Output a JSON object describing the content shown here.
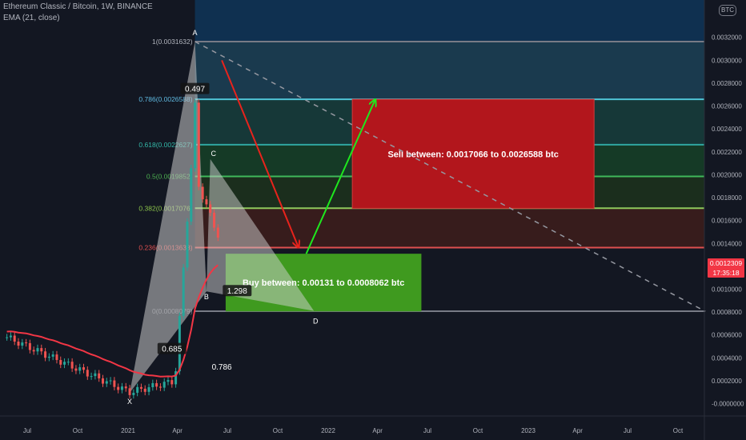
{
  "header": {
    "symbol_line": "Ethereum Classic / Bitcoin, 1W, BINANCE",
    "indicator_line": "EMA (21, close)",
    "currency_badge": "BTC"
  },
  "colors": {
    "background": "#131722",
    "ema": "#f23645",
    "candle_up": "#26a69a",
    "candle_down": "#ef5350",
    "sell_box": "#b2161c",
    "buy_box": "#3f9a1f",
    "arrow_down": "#e8231c",
    "arrow_up": "#1ee81e"
  },
  "price_tag": {
    "price": "0.0012309",
    "countdown": "17:35:18"
  },
  "chart_data": {
    "type": "candlestick",
    "title": "Ethereum Classic / Bitcoin, 1W, BINANCE",
    "y_axis": {
      "range": [
        -0.0002,
        0.0035
      ],
      "ticks": [
        0.0032,
        0.003,
        0.0028,
        0.0026,
        0.0024,
        0.0022,
        0.002,
        0.0018,
        0.0016,
        0.0014,
        0.0012,
        0.001,
        0.0008,
        0.0006,
        0.0004,
        0.0002,
        0.0
      ],
      "tick_labels": [
        "0.0032000",
        "0.0030000",
        "0.0028000",
        "0.0026000",
        "0.0024000",
        "0.0022000",
        "0.0020000",
        "0.0018000",
        "0.0016000",
        "0.0014000",
        "0.0012000",
        "0.0010000",
        "0.0008000",
        "0.0006000",
        "0.0004000",
        "0.0002000",
        "-0.0000000"
      ]
    },
    "x_axis": {
      "range": [
        "2020-05-25",
        "2023-11-20"
      ],
      "ticks": [
        {
          "label": "Jul",
          "date": "2020-07-01"
        },
        {
          "label": "Oct",
          "date": "2020-10-01"
        },
        {
          "label": "2021",
          "date": "2021-01-01"
        },
        {
          "label": "Apr",
          "date": "2021-04-01"
        },
        {
          "label": "Jul",
          "date": "2021-07-01"
        },
        {
          "label": "Oct",
          "date": "2021-10-01"
        },
        {
          "label": "2022",
          "date": "2022-01-01"
        },
        {
          "label": "Apr",
          "date": "2022-04-01"
        },
        {
          "label": "Jul",
          "date": "2022-07-01"
        },
        {
          "label": "Oct",
          "date": "2022-10-01"
        },
        {
          "label": "2023",
          "date": "2023-01-01"
        },
        {
          "label": "Apr",
          "date": "2023-04-01"
        },
        {
          "label": "Jul",
          "date": "2023-07-01"
        },
        {
          "label": "Oct",
          "date": "2023-10-01"
        }
      ]
    },
    "fib_levels": [
      {
        "ratio": "1",
        "price": 0.0031632,
        "label": "1(0.0031632)",
        "line": "#787b86",
        "fill": "#1d1e22",
        "label_color": "#b2b5be"
      },
      {
        "ratio": "0.786",
        "price": 0.0026588,
        "label": "0.786(0.0026588)",
        "line": "#4fc3d6",
        "fill": "#1a3a4e",
        "label_color": "#5fb9e0"
      },
      {
        "ratio": "0.618",
        "price": 0.0022627,
        "label": "0.618(0.0022627)",
        "line": "#2fa6a0",
        "fill": "#163838",
        "label_color": "#33b8a8"
      },
      {
        "ratio": "0.5",
        "price": 0.0019852,
        "label": "0.5(0.0019852)",
        "line": "#3fb85a",
        "fill": "#153a26",
        "label_color": "#4caf50"
      },
      {
        "ratio": "0.382",
        "price": 0.0017076,
        "label": "0.382(0.0017076)",
        "line": "#8ec95c",
        "fill": "#1b2e1d",
        "label_color": "#8bc34a"
      },
      {
        "ratio": "0.236",
        "price": 0.0013638,
        "label": "0.236(0.0013638)",
        "line": "#e05050",
        "fill": "#371c1c",
        "label_color": "#e05050"
      },
      {
        "ratio": "0",
        "price": 0.0008079,
        "label": "0(0.0008079)",
        "line": "#787b86",
        "fill": null,
        "label_color": "#787b86"
      }
    ],
    "sell_zone": {
      "text": "Sell between: 0.0017066 to 0.0026588 btc",
      "low": 0.0017066,
      "high": 0.0026588,
      "from": "2022-02-14",
      "to": "2023-05-01"
    },
    "buy_zone": {
      "text": "Buy between: 0.00131 to 0.0008062 btc",
      "low": 0.0008062,
      "high": 0.00131,
      "from": "2021-06-28",
      "to": "2022-06-20"
    },
    "harmonic_points": [
      {
        "name": "X",
        "date": "2021-01-04",
        "price": 9.52e-05
      },
      {
        "name": "A",
        "date": "2021-05-03",
        "price": 0.0031632
      },
      {
        "name": "B",
        "date": "2021-05-24",
        "price": 0.0009812
      },
      {
        "name": "C",
        "date": "2021-05-31",
        "price": 0.0021367
      },
      {
        "name": "D",
        "date": "2021-12-06",
        "price": 0.0008102
      }
    ],
    "pattern_ratios": [
      {
        "text": "0.685",
        "date": "2021-03-22",
        "price": 0.000475
      },
      {
        "text": "0.497",
        "date": "2021-05-03",
        "price": 0.0027465
      },
      {
        "text": "1.298",
        "date": "2021-07-19",
        "price": 0.0009812
      },
      {
        "text": "0.786",
        "date": "2021-06-21",
        "price": 0.0002984
      }
    ],
    "trendline": {
      "from": {
        "date": "2021-05-03",
        "price": 0.0031632
      },
      "to": {
        "date": "2023-11-20",
        "price": 0.0008062
      }
    },
    "arrows": [
      {
        "direction": "down",
        "from": {
          "date": "2021-06-21",
          "price": 0.003
        },
        "to": {
          "date": "2021-11-08",
          "price": 0.0013638
        }
      },
      {
        "direction": "up",
        "from": {
          "date": "2021-11-22",
          "price": 0.00131
        },
        "to": {
          "date": "2022-03-28",
          "price": 0.0026588
        }
      }
    ],
    "last_price": 0.0012309
  }
}
